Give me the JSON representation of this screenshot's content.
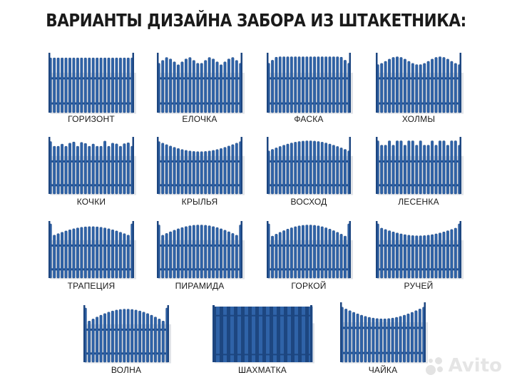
{
  "title": "ВАРИАНТЫ ДИЗАЙНА ЗАБОРА ИЗ ШТАКЕТНИКА:",
  "colors": {
    "picket": "#2f63a8",
    "picket_dark": "#1d4680",
    "rail": "#24518f",
    "shadow": "#c9ced6"
  },
  "designs": [
    {
      "id": "gorizont",
      "label": "ГОРИЗОНТ",
      "profile": "flat"
    },
    {
      "id": "elochka",
      "label": "ЕЛОЧКА",
      "profile": "zigzag"
    },
    {
      "id": "faska",
      "label": "ФАСКА",
      "profile": "bevel"
    },
    {
      "id": "holmy",
      "label": "ХОЛМЫ",
      "profile": "hills"
    },
    {
      "id": "kochki",
      "label": "КОЧКИ",
      "profile": "bumps"
    },
    {
      "id": "krylya",
      "label": "КРЫЛЬЯ",
      "profile": "wings"
    },
    {
      "id": "voshod",
      "label": "ВОСХОД",
      "profile": "sunrise"
    },
    {
      "id": "lesenka",
      "label": "ЛЕСЕНКА",
      "profile": "steps"
    },
    {
      "id": "trapeciya",
      "label": "ТРАПЕЦИЯ",
      "profile": "trapezoid"
    },
    {
      "id": "piramida",
      "label": "ПИРАМИДА",
      "profile": "pyramid"
    },
    {
      "id": "gorkoy",
      "label": "ГОРКОЙ",
      "profile": "arch"
    },
    {
      "id": "ruchey",
      "label": "РУЧЕЙ",
      "profile": "stream"
    },
    {
      "id": "volna",
      "label": "ВОЛНА",
      "profile": "wave"
    },
    {
      "id": "shahmatka",
      "label": "ШАХМАТКА",
      "profile": "checker"
    },
    {
      "id": "chayka",
      "label": "ЧАЙКА",
      "profile": "gull"
    }
  ],
  "watermark": {
    "text": "Avito",
    "icon": "avito-logo-icon"
  }
}
